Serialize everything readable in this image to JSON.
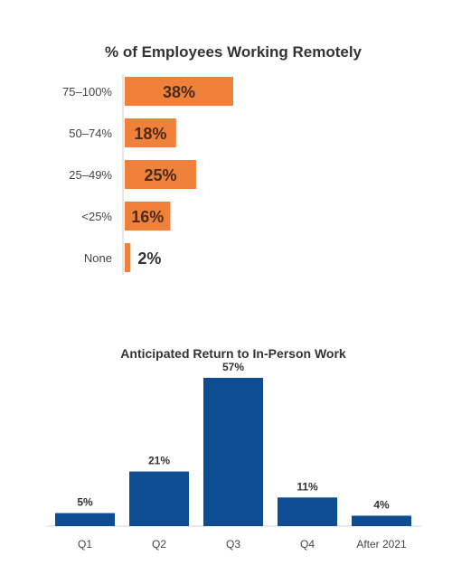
{
  "chart_data": [
    {
      "type": "bar",
      "orientation": "horizontal",
      "title": "% of Employees Working Remotely",
      "categories": [
        "75–100%",
        "50–74%",
        "25–49%",
        "<25%",
        "None"
      ],
      "values": [
        38,
        18,
        25,
        16,
        2
      ],
      "value_labels": [
        "38%",
        "18%",
        "25%",
        "16%",
        "2%"
      ],
      "color": "#f0813a",
      "xlim": [
        0,
        38
      ]
    },
    {
      "type": "bar",
      "orientation": "vertical",
      "title": "Anticipated Return to In-Person Work",
      "categories": [
        "Q1",
        "Q2",
        "Q3",
        "Q4",
        "After 2021"
      ],
      "values": [
        5,
        21,
        57,
        11,
        4
      ],
      "value_labels": [
        "5%",
        "21%",
        "57%",
        "11%",
        "4%"
      ],
      "color": "#0f4d92",
      "ylim": [
        0,
        57
      ]
    }
  ]
}
